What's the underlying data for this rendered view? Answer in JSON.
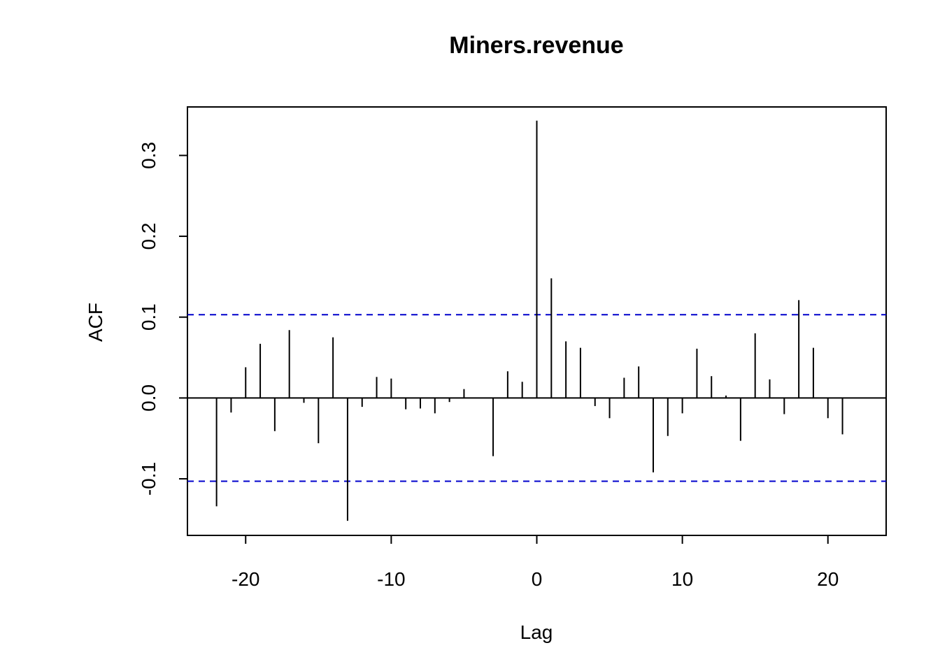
{
  "chart_data": {
    "type": "bar",
    "title": "Miners.revenue",
    "xlabel": "Lag",
    "ylabel": "ACF",
    "xlim": [
      -24,
      24
    ],
    "ylim": [
      -0.17,
      0.36
    ],
    "x_ticks": [
      -20,
      -10,
      0,
      10,
      20
    ],
    "y_ticks": [
      -0.1,
      0.0,
      0.1,
      0.2,
      0.3
    ],
    "x_tick_labels": [
      "-20",
      "-10",
      "0",
      "10",
      "20"
    ],
    "y_tick_labels": [
      "-0.1",
      "0.0",
      "0.1",
      "0.2",
      "0.3"
    ],
    "grid": false,
    "confidence_band": 0.103,
    "confidence_color": "#0000cc",
    "line_color": "#000000",
    "lags": [
      -22,
      -21,
      -20,
      -19,
      -18,
      -17,
      -16,
      -15,
      -14,
      -13,
      -12,
      -11,
      -10,
      -9,
      -8,
      -7,
      -6,
      -5,
      -4,
      -3,
      -2,
      -1,
      0,
      1,
      2,
      3,
      4,
      5,
      6,
      7,
      8,
      9,
      10,
      11,
      12,
      13,
      14,
      15,
      16,
      17,
      18,
      19,
      20,
      21
    ],
    "values": [
      -0.134,
      -0.018,
      0.038,
      0.067,
      -0.041,
      0.084,
      -0.006,
      -0.056,
      0.075,
      -0.152,
      -0.011,
      0.026,
      0.024,
      -0.014,
      -0.013,
      -0.019,
      -0.005,
      0.011,
      0.0,
      -0.072,
      0.033,
      0.02,
      0.343,
      0.148,
      0.07,
      0.062,
      -0.01,
      -0.025,
      0.025,
      0.039,
      -0.092,
      -0.047,
      -0.019,
      0.061,
      0.027,
      0.003,
      -0.053,
      0.08,
      0.023,
      -0.02,
      0.121,
      0.062,
      -0.025,
      -0.045
    ]
  }
}
